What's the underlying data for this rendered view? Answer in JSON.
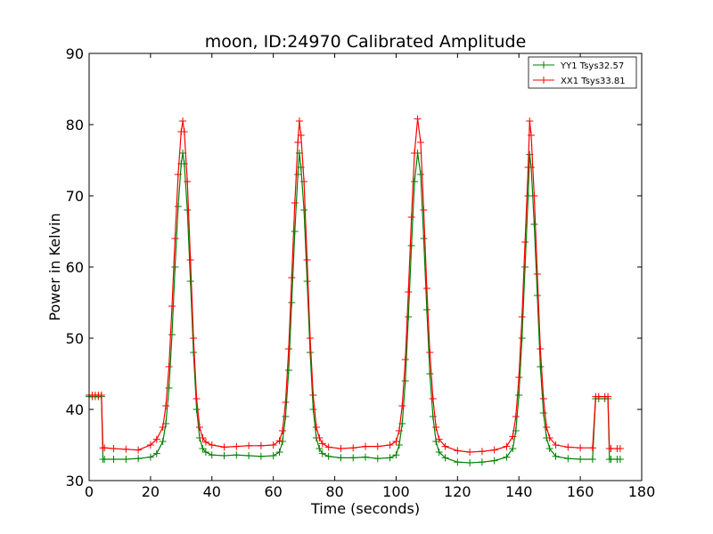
{
  "chart_data": {
    "type": "line",
    "title": "moon, ID:24970 Calibrated Amplitude",
    "xlabel": "Time (seconds)",
    "ylabel": "Power in Kelvin",
    "xlim": [
      0,
      180
    ],
    "ylim": [
      30,
      90
    ],
    "xticks": [
      0,
      20,
      40,
      60,
      80,
      100,
      120,
      140,
      160,
      180
    ],
    "yticks": [
      30,
      40,
      50,
      60,
      70,
      80,
      90
    ],
    "grid": false,
    "legend_position": "top-right",
    "series": [
      {
        "name": "YY1 Tsys32.57",
        "color": "#008000",
        "marker": "+",
        "x": [
          0,
          1,
          2,
          3,
          4,
          4.5,
          5,
          8,
          12,
          16,
          20,
          22,
          24,
          25,
          26,
          27,
          28,
          29,
          30,
          30.5,
          31,
          32,
          33,
          34,
          35,
          36,
          37,
          38,
          40,
          44,
          48,
          52,
          56,
          60,
          62,
          63,
          64,
          65,
          66,
          67,
          68,
          68.5,
          69,
          70,
          71,
          72,
          73,
          74,
          75,
          76,
          78,
          82,
          86,
          90,
          94,
          98,
          100,
          101,
          102,
          103,
          104,
          105,
          106,
          107,
          108,
          109,
          110,
          111,
          112,
          113,
          114,
          116,
          120,
          124,
          128,
          132,
          136,
          138,
          139,
          140,
          141,
          142,
          143,
          143.5,
          144,
          145,
          146,
          147,
          148,
          149,
          150,
          152,
          156,
          160,
          164,
          165,
          166,
          168,
          169,
          169.5,
          170,
          172,
          173
        ],
        "y": [
          41.8,
          41.8,
          41.8,
          41.8,
          41.8,
          33.0,
          33.0,
          33.0,
          33.0,
          33.1,
          33.3,
          33.8,
          35.5,
          38.0,
          43.0,
          50.5,
          60.0,
          68.5,
          74.5,
          76.0,
          74.5,
          68.0,
          58.0,
          48.0,
          40.0,
          36.0,
          34.5,
          34.0,
          33.6,
          33.5,
          33.6,
          33.5,
          33.4,
          33.5,
          34.0,
          35.5,
          39.0,
          45.5,
          55.0,
          65.0,
          73.0,
          76.0,
          74.0,
          68.0,
          58.0,
          48.0,
          40.0,
          36.0,
          34.5,
          33.8,
          33.4,
          33.2,
          33.2,
          33.3,
          33.1,
          33.2,
          33.6,
          35.0,
          38.0,
          44.0,
          53.0,
          63.0,
          72.0,
          76.0,
          73.0,
          64.0,
          54.0,
          45.0,
          39.0,
          35.5,
          34.0,
          33.2,
          32.6,
          32.5,
          32.6,
          32.8,
          33.3,
          34.5,
          37.0,
          42.0,
          50.0,
          60.0,
          70.0,
          75.8,
          74.0,
          66.0,
          56.0,
          46.0,
          39.5,
          36.0,
          34.5,
          33.4,
          33.1,
          33.0,
          33.0,
          41.5,
          41.5,
          41.5,
          41.5,
          33.0,
          33.0,
          33.0,
          33.0
        ]
      },
      {
        "name": "XX1 Tsys33.81",
        "color": "#ff0000",
        "marker": "+",
        "x": [
          0,
          1,
          2,
          3,
          4,
          4.5,
          5,
          8,
          12,
          16,
          20,
          22,
          24,
          25,
          26,
          27,
          28,
          29,
          30,
          30.5,
          31,
          32,
          33,
          34,
          35,
          36,
          37,
          38,
          40,
          44,
          48,
          52,
          56,
          60,
          62,
          63,
          64,
          65,
          66,
          67,
          68,
          68.5,
          69,
          70,
          71,
          72,
          73,
          74,
          75,
          76,
          78,
          82,
          86,
          90,
          94,
          98,
          100,
          101,
          102,
          103,
          104,
          105,
          106,
          107,
          108,
          109,
          110,
          111,
          112,
          113,
          114,
          116,
          120,
          124,
          128,
          132,
          136,
          138,
          139,
          140,
          141,
          142,
          143,
          143.5,
          144,
          145,
          146,
          147,
          148,
          149,
          150,
          152,
          156,
          160,
          164,
          165,
          166,
          168,
          169,
          169.5,
          170,
          172,
          173
        ],
        "y": [
          42.0,
          42.0,
          42.0,
          42.0,
          42.0,
          34.6,
          34.6,
          34.5,
          34.4,
          34.3,
          35.0,
          35.8,
          37.5,
          40.5,
          46.0,
          54.5,
          64.0,
          73.0,
          79.0,
          80.5,
          79.0,
          72.0,
          61.0,
          50.0,
          41.5,
          37.5,
          36.0,
          35.4,
          35.0,
          34.7,
          34.8,
          34.9,
          34.9,
          35.0,
          35.6,
          37.0,
          41.0,
          48.5,
          58.5,
          69.0,
          77.5,
          80.5,
          78.5,
          72.0,
          61.0,
          50.0,
          42.0,
          37.5,
          36.0,
          35.2,
          34.7,
          34.5,
          34.6,
          34.8,
          34.8,
          35.0,
          35.5,
          37.0,
          40.5,
          47.0,
          56.5,
          67.0,
          76.0,
          80.8,
          77.5,
          68.0,
          57.0,
          48.0,
          41.5,
          37.5,
          35.8,
          34.8,
          34.2,
          34.0,
          34.1,
          34.3,
          34.8,
          36.2,
          39.0,
          44.5,
          53.0,
          63.5,
          74.0,
          80.5,
          78.5,
          70.0,
          59.0,
          48.5,
          41.5,
          37.5,
          36.0,
          35.0,
          34.7,
          34.6,
          34.6,
          41.8,
          41.8,
          41.8,
          41.8,
          34.5,
          34.5,
          34.5,
          34.5
        ]
      }
    ]
  }
}
